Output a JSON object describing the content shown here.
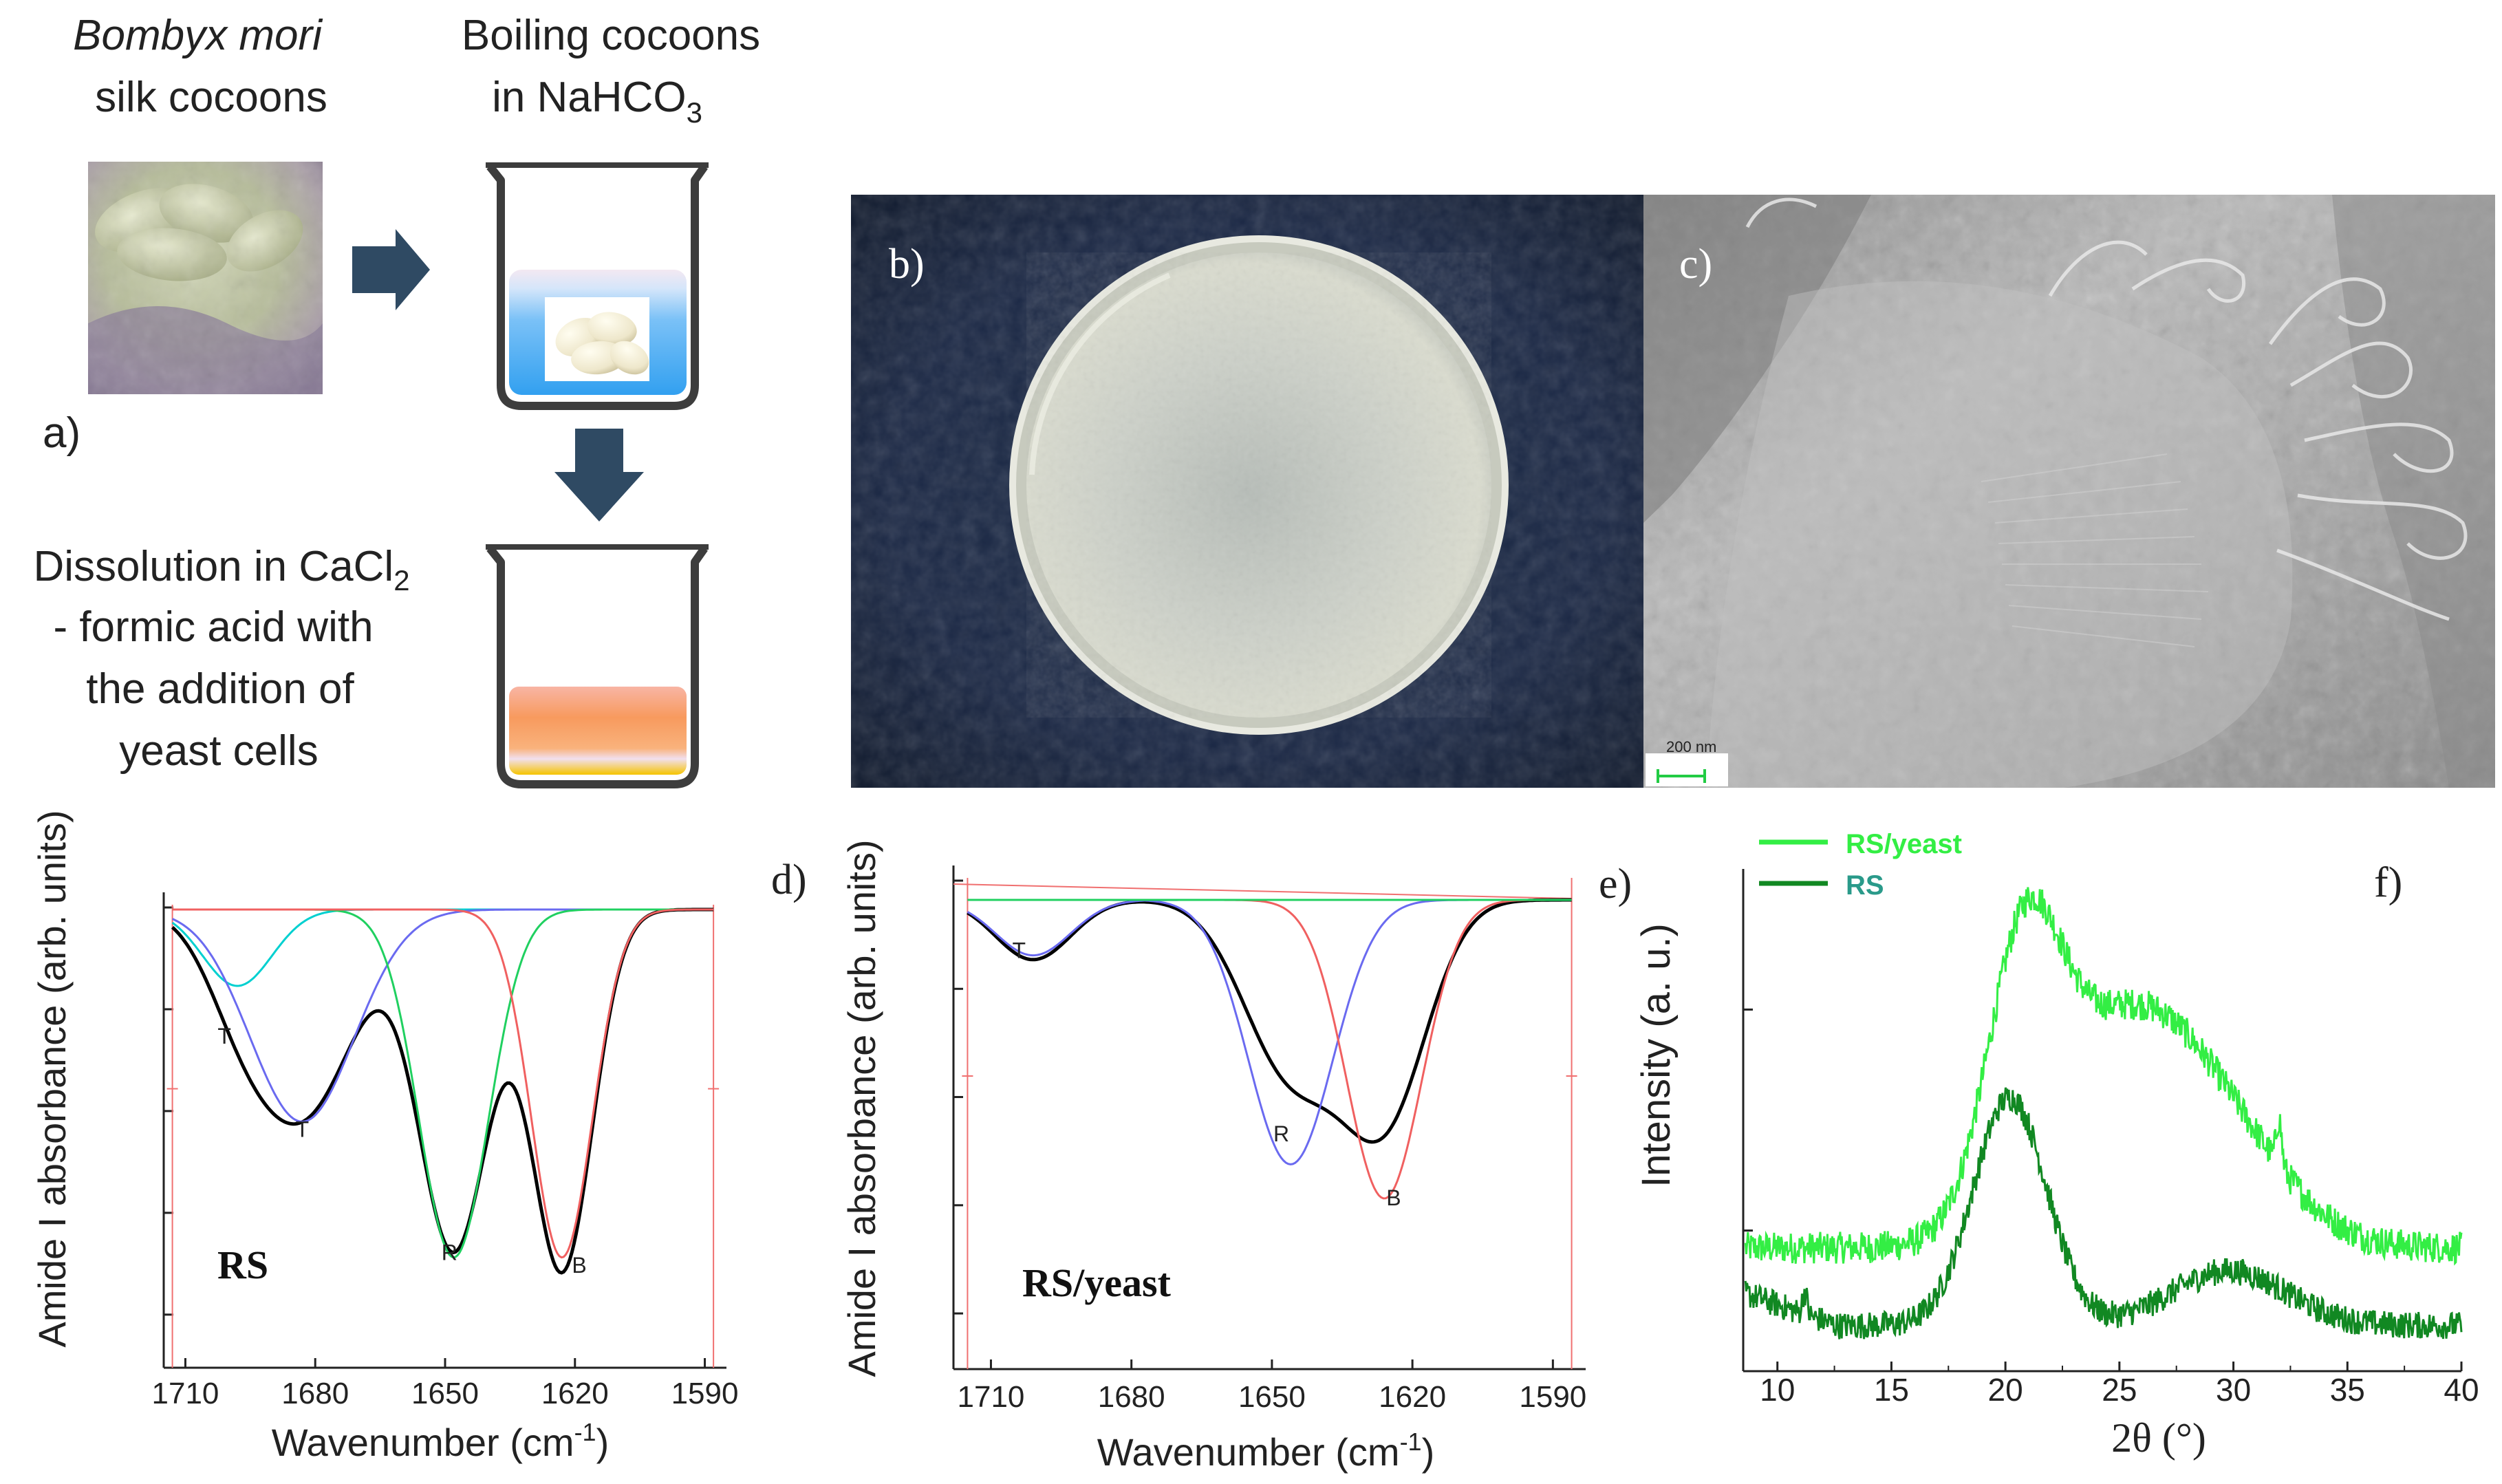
{
  "panel_a": {
    "label": "a)",
    "cocoon_title_italic": "Bombyx mori",
    "cocoon_title_rest": "silk cocoons",
    "boil_line1": "Boiling cocoons",
    "boil_line2": "in NaHCO",
    "boil_sub": "3",
    "dissolve_line1": "Dissolution in CaCl",
    "dissolve_sub": "2",
    "dissolve_line2": "- formic acid with",
    "dissolve_line3": "the addition of",
    "dissolve_line4": "yeast cells"
  },
  "panel_b": {
    "label": "b)"
  },
  "panel_c": {
    "label": "c)",
    "scale_bar": "200 nm"
  },
  "colors": {
    "arrow": "#2f4a63",
    "total_fit": "#000000",
    "band_T1": "#00d0d0",
    "band_T2": "#6a6af0",
    "band_R": "#20d060",
    "band_B": "#f06060",
    "baseline": "#f07070",
    "xrd_light": "#33ee44",
    "xrd_dark": "#118822"
  },
  "chart_data": [
    {
      "id": "d",
      "panel_label": "d)",
      "type": "line",
      "title": "",
      "annotation": "RS",
      "xlabel": "Wavenumber (cm",
      "xlabel_sup": "-1",
      "xlabel_close": ")",
      "ylabel": "Amide I absorbance (arb. units)",
      "xlim": [
        1715,
        1585
      ],
      "xticks": [
        1710,
        1680,
        1650,
        1620,
        1590
      ],
      "xtick_labels": [
        "1710",
        "1680",
        "1650",
        "1620",
        "1590"
      ],
      "ylim": [
        0,
        1.08
      ],
      "series": [
        {
          "name": "Total fit",
          "color": "#000000",
          "bands": [
            [
              1698,
              0.12,
              8
            ],
            [
              1683,
              0.48,
              12
            ],
            [
              1648,
              0.8,
              8
            ],
            [
              1623,
              0.85,
              7
            ]
          ]
        },
        {
          "name": "T (1698)",
          "label": "T",
          "label_x": 1701,
          "label_y": 0.7,
          "color": "#00d0d0",
          "bands": [
            [
              1698,
              0.18,
              8
            ]
          ]
        },
        {
          "name": "T (1683)",
          "label": "T",
          "label_x": 1683,
          "label_y": 0.48,
          "color": "#6a6af0",
          "bands": [
            [
              1683,
              0.5,
              12
            ]
          ]
        },
        {
          "name": "R (1648)",
          "label": "R",
          "label_x": 1649,
          "label_y": 0.19,
          "color": "#20d060",
          "bands": [
            [
              1648,
              0.82,
              8
            ]
          ]
        },
        {
          "name": "B (1623)",
          "label": "B",
          "label_x": 1619,
          "label_y": 0.16,
          "color": "#f06060",
          "bands": [
            [
              1623,
              0.82,
              7
            ]
          ]
        }
      ],
      "baseline_marks": [
        1713,
        1588
      ]
    },
    {
      "id": "e",
      "panel_label": "e)",
      "type": "line",
      "title": "",
      "annotation": "RS/yeast",
      "xlabel": "Wavenumber (cm",
      "xlabel_sup": "-1",
      "xlabel_close": ")",
      "ylabel": "Amide I absorbance (arb. units)",
      "xlim": [
        1718,
        1583
      ],
      "xticks": [
        1710,
        1680,
        1650,
        1620,
        1590
      ],
      "xtick_labels": [
        "1710",
        "1680",
        "1650",
        "1620",
        "1590"
      ],
      "ylim": [
        0,
        1.1
      ],
      "series": [
        {
          "name": "Total fit",
          "color": "#000000",
          "bands": [
            [
              1701,
              0.14,
              8
            ],
            [
              1646,
              0.4,
              10
            ],
            [
              1626,
              0.5,
              9
            ]
          ]
        },
        {
          "name": "T (1701)",
          "label": "T",
          "label_x": 1704,
          "label_y": 0.88,
          "color": "#6a6af0",
          "bands": [
            [
              1701,
              0.13,
              8
            ]
          ]
        },
        {
          "name": "R (1646)",
          "label": "R",
          "label_x": 1648,
          "label_y": 0.45,
          "color": "#6a6af0",
          "bands": [
            [
              1646,
              0.62,
              9
            ]
          ]
        },
        {
          "name": "B (1626)",
          "label": "B",
          "label_x": 1624,
          "label_y": 0.3,
          "color": "#f06060",
          "bands": [
            [
              1626,
              0.7,
              8
            ]
          ]
        },
        {
          "name": "baseline",
          "color": "#20d060",
          "bands": []
        }
      ],
      "baseline_marks": [
        1715,
        1586
      ]
    },
    {
      "id": "f",
      "panel_label": "f)",
      "type": "line",
      "title": "",
      "xlabel": "2θ (°)",
      "ylabel": "Intensity (a. u.)",
      "xlim": [
        8.5,
        40
      ],
      "xticks": [
        10,
        15,
        20,
        25,
        30,
        35,
        40
      ],
      "xtick_labels": [
        "10",
        "15",
        "20",
        "25",
        "30",
        "35",
        "40"
      ],
      "ylim": [
        0,
        1.1
      ],
      "legend": [
        "RS/yeast",
        "RS"
      ],
      "series": [
        {
          "name": "RS/yeast",
          "color": "#33ee44",
          "noise": 0.035,
          "base": 0.27,
          "peaks": [
            [
              20.8,
              0.56,
              1.6
            ],
            [
              25.0,
              0.45,
              3.2
            ],
            [
              29.5,
              0.2,
              3.0
            ],
            [
              32.0,
              0.1,
              0.12
            ]
          ],
          "tail": 0.0
        },
        {
          "name": "RS",
          "color": "#118822",
          "noise": 0.03,
          "base": 0.1,
          "peaks": [
            [
              20.2,
              0.5,
              1.6
            ],
            [
              29.8,
              0.12,
              2.5
            ],
            [
              11.2,
              0.05,
              0.1
            ]
          ],
          "tail": 0.07
        }
      ]
    }
  ]
}
